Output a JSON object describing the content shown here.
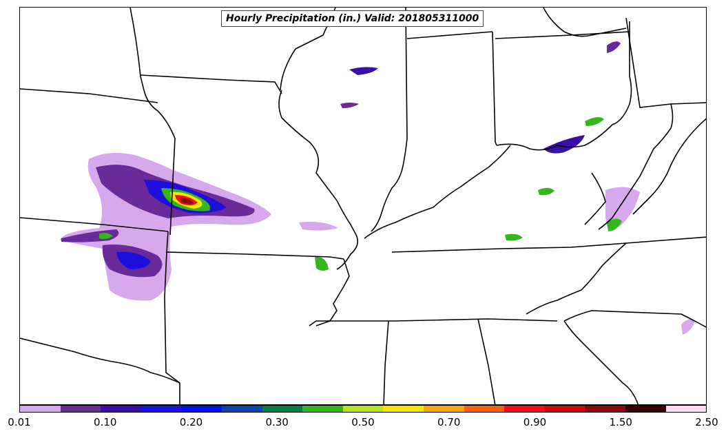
{
  "title": "Hourly Precipitation (in.) Valid: 201805311000",
  "colorbar": {
    "colors": [
      "#d8a8ec",
      "#6a2a9a",
      "#3a0ea8",
      "#1e10dc",
      "#0012f0",
      "#0648a8",
      "#048044",
      "#34b61c",
      "#b8e21a",
      "#f8e400",
      "#f8a808",
      "#f86010",
      "#f01010",
      "#d00808",
      "#8a0a0a",
      "#3a0202",
      "#ffd8f4"
    ],
    "tick_labels": [
      "0.01",
      "0.10",
      "0.20",
      "0.30",
      "0.50",
      "0.70",
      "0.90",
      "1.50",
      "2.50"
    ]
  }
}
